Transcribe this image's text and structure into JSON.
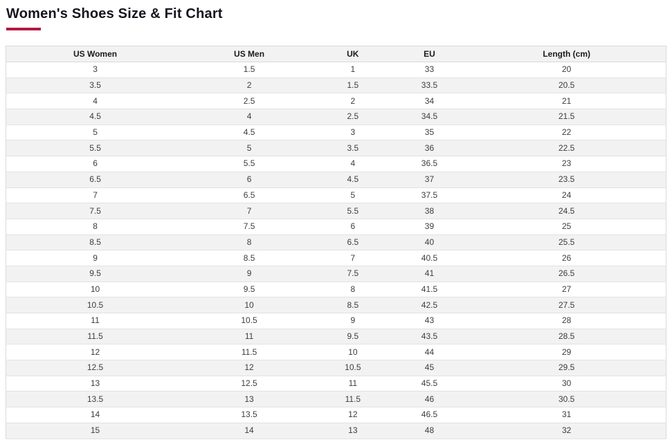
{
  "page": {
    "title": "Women's Shoes Size & Fit Chart"
  },
  "accent_color": "#b31942",
  "chart_data": {
    "type": "table",
    "title": "Women's Shoes Size & Fit Chart",
    "columns": [
      "US Women",
      "US Men",
      "UK",
      "EU",
      "Length (cm)"
    ],
    "rows": [
      [
        "3",
        "1.5",
        "1",
        "33",
        "20"
      ],
      [
        "3.5",
        "2",
        "1.5",
        "33.5",
        "20.5"
      ],
      [
        "4",
        "2.5",
        "2",
        "34",
        "21"
      ],
      [
        "4.5",
        "4",
        "2.5",
        "34.5",
        "21.5"
      ],
      [
        "5",
        "4.5",
        "3",
        "35",
        "22"
      ],
      [
        "5.5",
        "5",
        "3.5",
        "36",
        "22.5"
      ],
      [
        "6",
        "5.5",
        "4",
        "36.5",
        "23"
      ],
      [
        "6.5",
        "6",
        "4.5",
        "37",
        "23.5"
      ],
      [
        "7",
        "6.5",
        "5",
        "37.5",
        "24"
      ],
      [
        "7.5",
        "7",
        "5.5",
        "38",
        "24.5"
      ],
      [
        "8",
        "7.5",
        "6",
        "39",
        "25"
      ],
      [
        "8.5",
        "8",
        "6.5",
        "40",
        "25.5"
      ],
      [
        "9",
        "8.5",
        "7",
        "40.5",
        "26"
      ],
      [
        "9.5",
        "9",
        "7.5",
        "41",
        "26.5"
      ],
      [
        "10",
        "9.5",
        "8",
        "41.5",
        "27"
      ],
      [
        "10.5",
        "10",
        "8.5",
        "42.5",
        "27.5"
      ],
      [
        "11",
        "10.5",
        "9",
        "43",
        "28"
      ],
      [
        "11.5",
        "11",
        "9.5",
        "43.5",
        "28.5"
      ],
      [
        "12",
        "11.5",
        "10",
        "44",
        "29"
      ],
      [
        "12.5",
        "12",
        "10.5",
        "45",
        "29.5"
      ],
      [
        "13",
        "12.5",
        "11",
        "45.5",
        "30"
      ],
      [
        "13.5",
        "13",
        "11.5",
        "46",
        "30.5"
      ],
      [
        "14",
        "13.5",
        "12",
        "46.5",
        "31"
      ],
      [
        "15",
        "14",
        "13",
        "48",
        "32"
      ]
    ]
  }
}
